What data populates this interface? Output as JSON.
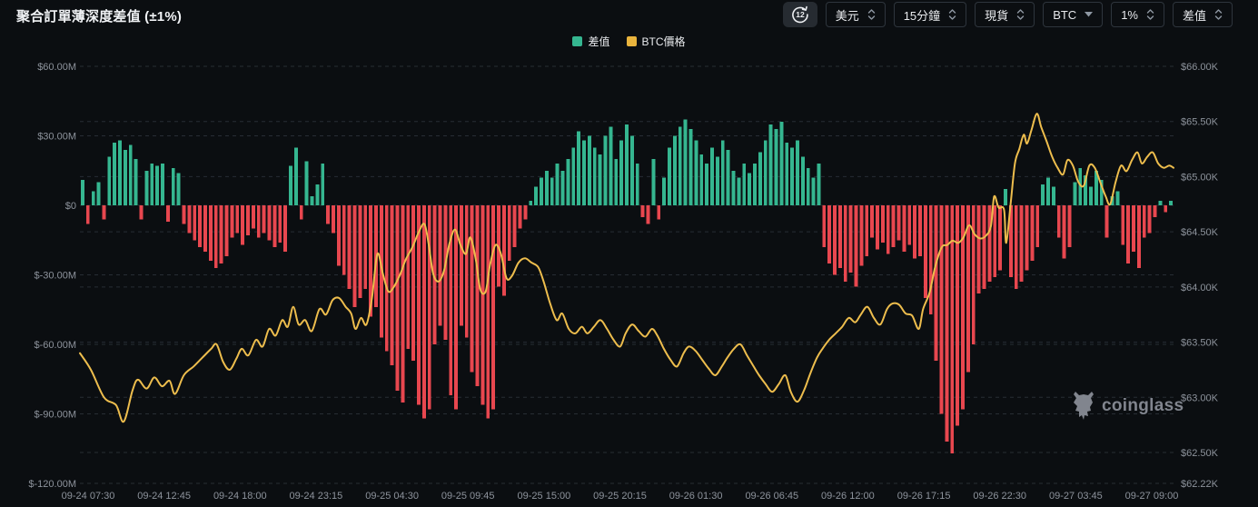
{
  "header": {
    "title": "聚合訂單薄深度差值 (±1%)"
  },
  "toolbar": {
    "refresh_label": "12",
    "buttons": [
      {
        "label": "美元",
        "control": "spinner"
      },
      {
        "label": "15分鐘",
        "control": "spinner"
      },
      {
        "label": "現貨",
        "control": "spinner"
      },
      {
        "label": "BTC",
        "control": "dropdown"
      },
      {
        "label": "1%",
        "control": "spinner"
      },
      {
        "label": "差值",
        "control": "spinner"
      }
    ]
  },
  "legend": {
    "items": [
      {
        "label": "差值",
        "color": "#35B690"
      },
      {
        "label": "BTC價格",
        "color": "#E9B43D"
      }
    ]
  },
  "watermark": {
    "text": "coinglass"
  },
  "chart_data": {
    "type": "bar+line",
    "title": "聚合訂單薄深度差值 (±1%)",
    "bar_series": {
      "name": "差值",
      "unit": "USD millions",
      "positive_color": "#35B690",
      "negative_color": "#E8474F",
      "values": [
        11,
        -8,
        6,
        10,
        -6,
        21,
        27,
        28,
        24,
        26,
        20,
        -6,
        15,
        18,
        17,
        18,
        -7,
        16,
        14,
        -8,
        -12,
        -15,
        -18,
        -20,
        -24,
        -27,
        -25,
        -22,
        -14,
        -12,
        -17,
        -13,
        -10,
        -14,
        -12,
        -15,
        -18,
        -16,
        -20,
        17,
        25,
        -6,
        19,
        4,
        9,
        18,
        -8,
        -12,
        -26,
        -30,
        -36,
        -44,
        -40,
        -36,
        -48,
        -44,
        -57,
        -63,
        -69,
        -80,
        -85,
        -62,
        -67,
        -86,
        -92,
        -88,
        -60,
        -52,
        -58,
        -82,
        -88,
        -52,
        -57,
        -72,
        -78,
        -86,
        -92,
        -88,
        -35,
        -39,
        -24,
        -18,
        -10,
        -6,
        2,
        8,
        12,
        15,
        12,
        18,
        15,
        20,
        25,
        32,
        28,
        30,
        25,
        22,
        30,
        34,
        20,
        28,
        35,
        30,
        18,
        -5,
        -8,
        20,
        -6,
        12,
        25,
        30,
        34,
        37,
        33,
        28,
        22,
        18,
        25,
        21,
        28,
        24,
        15,
        12,
        18,
        14,
        18,
        23,
        28,
        35,
        33,
        36,
        27,
        25,
        28,
        21,
        16,
        12,
        18,
        -18,
        -25,
        -30,
        -27,
        -33,
        -29,
        -35,
        -26,
        -22,
        -14,
        -19,
        -16,
        -21,
        -18,
        -15,
        -20,
        -17,
        -23,
        -22,
        -40,
        -47,
        -67,
        -90,
        -102,
        -107,
        -95,
        -88,
        -72,
        -60,
        -38,
        -36,
        -33,
        -31,
        -28,
        7,
        -31,
        -36,
        -33,
        -28,
        -24,
        -18,
        9,
        12,
        8,
        -14,
        -23,
        -18,
        10,
        16,
        13,
        8,
        15,
        11,
        -14,
        4,
        6,
        -17,
        -25,
        -20,
        -27,
        -14,
        -12,
        -5,
        2,
        -3,
        2
      ]
    },
    "line_series": {
      "name": "BTC價格",
      "unit": "USD thousands",
      "color": "#EDBD4D",
      "points": [
        [
          0.0,
          63.4
        ],
        [
          0.01,
          63.25
        ],
        [
          0.022,
          63.0
        ],
        [
          0.033,
          62.93
        ],
        [
          0.04,
          62.78
        ],
        [
          0.048,
          63.06
        ],
        [
          0.053,
          63.16
        ],
        [
          0.061,
          63.08
        ],
        [
          0.068,
          63.18
        ],
        [
          0.075,
          63.1
        ],
        [
          0.082,
          63.15
        ],
        [
          0.087,
          63.03
        ],
        [
          0.095,
          63.2
        ],
        [
          0.104,
          63.28
        ],
        [
          0.112,
          63.36
        ],
        [
          0.12,
          63.44
        ],
        [
          0.125,
          63.48
        ],
        [
          0.131,
          63.32
        ],
        [
          0.137,
          63.25
        ],
        [
          0.143,
          63.35
        ],
        [
          0.148,
          63.44
        ],
        [
          0.154,
          63.38
        ],
        [
          0.161,
          63.52
        ],
        [
          0.167,
          63.46
        ],
        [
          0.173,
          63.62
        ],
        [
          0.179,
          63.56
        ],
        [
          0.185,
          63.7
        ],
        [
          0.19,
          63.64
        ],
        [
          0.195,
          63.82
        ],
        [
          0.2,
          63.66
        ],
        [
          0.206,
          63.7
        ],
        [
          0.212,
          63.6
        ],
        [
          0.219,
          63.8
        ],
        [
          0.225,
          63.75
        ],
        [
          0.231,
          63.88
        ],
        [
          0.237,
          63.9
        ],
        [
          0.243,
          63.82
        ],
        [
          0.248,
          63.76
        ],
        [
          0.252,
          63.62
        ],
        [
          0.257,
          63.72
        ],
        [
          0.262,
          63.66
        ],
        [
          0.267,
          63.9
        ],
        [
          0.272,
          64.3
        ],
        [
          0.277,
          64.12
        ],
        [
          0.282,
          63.96
        ],
        [
          0.287,
          64.0
        ],
        [
          0.293,
          64.12
        ],
        [
          0.298,
          64.25
        ],
        [
          0.304,
          64.36
        ],
        [
          0.31,
          64.5
        ],
        [
          0.315,
          64.57
        ],
        [
          0.319,
          64.38
        ],
        [
          0.323,
          64.12
        ],
        [
          0.328,
          64.05
        ],
        [
          0.333,
          64.15
        ],
        [
          0.338,
          64.4
        ],
        [
          0.343,
          64.52
        ],
        [
          0.348,
          64.38
        ],
        [
          0.353,
          64.3
        ],
        [
          0.357,
          64.45
        ],
        [
          0.362,
          64.25
        ],
        [
          0.366,
          63.98
        ],
        [
          0.371,
          63.96
        ],
        [
          0.375,
          64.2
        ],
        [
          0.38,
          64.38
        ],
        [
          0.385,
          64.3
        ],
        [
          0.39,
          64.08
        ],
        [
          0.395,
          64.1
        ],
        [
          0.401,
          64.22
        ],
        [
          0.407,
          64.26
        ],
        [
          0.413,
          64.22
        ],
        [
          0.419,
          64.18
        ],
        [
          0.424,
          64.05
        ],
        [
          0.43,
          63.85
        ],
        [
          0.436,
          63.7
        ],
        [
          0.441,
          63.76
        ],
        [
          0.447,
          63.62
        ],
        [
          0.453,
          63.58
        ],
        [
          0.459,
          63.64
        ],
        [
          0.464,
          63.58
        ],
        [
          0.47,
          63.64
        ],
        [
          0.476,
          63.7
        ],
        [
          0.482,
          63.62
        ],
        [
          0.488,
          63.52
        ],
        [
          0.494,
          63.46
        ],
        [
          0.499,
          63.58
        ],
        [
          0.505,
          63.66
        ],
        [
          0.511,
          63.6
        ],
        [
          0.517,
          63.55
        ],
        [
          0.523,
          63.62
        ],
        [
          0.528,
          63.56
        ],
        [
          0.534,
          63.44
        ],
        [
          0.54,
          63.34
        ],
        [
          0.546,
          63.28
        ],
        [
          0.552,
          63.4
        ],
        [
          0.557,
          63.46
        ],
        [
          0.563,
          63.42
        ],
        [
          0.569,
          63.34
        ],
        [
          0.575,
          63.26
        ],
        [
          0.581,
          63.2
        ],
        [
          0.587,
          63.28
        ],
        [
          0.592,
          63.36
        ],
        [
          0.598,
          63.44
        ],
        [
          0.604,
          63.48
        ],
        [
          0.61,
          63.38
        ],
        [
          0.616,
          63.28
        ],
        [
          0.621,
          63.2
        ],
        [
          0.627,
          63.12
        ],
        [
          0.633,
          63.05
        ],
        [
          0.639,
          63.12
        ],
        [
          0.645,
          63.2
        ],
        [
          0.65,
          63.05
        ],
        [
          0.656,
          62.96
        ],
        [
          0.662,
          63.06
        ],
        [
          0.668,
          63.22
        ],
        [
          0.674,
          63.36
        ],
        [
          0.679,
          63.44
        ],
        [
          0.685,
          63.52
        ],
        [
          0.691,
          63.58
        ],
        [
          0.697,
          63.64
        ],
        [
          0.703,
          63.72
        ],
        [
          0.709,
          63.68
        ],
        [
          0.714,
          63.75
        ],
        [
          0.72,
          63.82
        ],
        [
          0.726,
          63.72
        ],
        [
          0.732,
          63.66
        ],
        [
          0.738,
          63.8
        ],
        [
          0.743,
          63.85
        ],
        [
          0.749,
          63.84
        ],
        [
          0.755,
          63.76
        ],
        [
          0.761,
          63.74
        ],
        [
          0.767,
          63.62
        ],
        [
          0.771,
          63.8
        ],
        [
          0.777,
          63.95
        ],
        [
          0.782,
          64.18
        ],
        [
          0.788,
          64.36
        ],
        [
          0.793,
          64.38
        ],
        [
          0.798,
          64.42
        ],
        [
          0.803,
          64.4
        ],
        [
          0.808,
          64.45
        ],
        [
          0.813,
          64.56
        ],
        [
          0.818,
          64.48
        ],
        [
          0.823,
          64.44
        ],
        [
          0.828,
          64.46
        ],
        [
          0.833,
          64.55
        ],
        [
          0.836,
          64.82
        ],
        [
          0.84,
          64.72
        ],
        [
          0.845,
          64.7
        ],
        [
          0.847,
          64.4
        ],
        [
          0.851,
          64.75
        ],
        [
          0.855,
          65.12
        ],
        [
          0.859,
          65.25
        ],
        [
          0.863,
          65.38
        ],
        [
          0.866,
          65.3
        ],
        [
          0.87,
          65.42
        ],
        [
          0.875,
          65.57
        ],
        [
          0.879,
          65.45
        ],
        [
          0.884,
          65.32
        ],
        [
          0.889,
          65.18
        ],
        [
          0.894,
          65.08
        ],
        [
          0.899,
          65.02
        ],
        [
          0.903,
          65.15
        ],
        [
          0.908,
          65.1
        ],
        [
          0.913,
          64.95
        ],
        [
          0.918,
          64.92
        ],
        [
          0.923,
          65.1
        ],
        [
          0.928,
          65.08
        ],
        [
          0.933,
          64.95
        ],
        [
          0.938,
          64.82
        ],
        [
          0.942,
          64.75
        ],
        [
          0.947,
          64.95
        ],
        [
          0.952,
          65.1
        ],
        [
          0.957,
          65.05
        ],
        [
          0.962,
          65.15
        ],
        [
          0.967,
          65.22
        ],
        [
          0.971,
          65.12
        ],
        [
          0.976,
          65.18
        ],
        [
          0.981,
          65.22
        ],
        [
          0.986,
          65.12
        ],
        [
          0.991,
          65.08
        ],
        [
          0.996,
          65.1
        ],
        [
          1.0,
          65.08
        ]
      ]
    },
    "x_axis": {
      "interval": "15分鐘",
      "tick_labels": [
        "09-24 07:30",
        "09-24 12:45",
        "09-24 18:00",
        "09-24 23:15",
        "09-25 04:30",
        "09-25 09:45",
        "09-25 15:00",
        "09-25 20:15",
        "09-26 01:30",
        "09-26 06:45",
        "09-26 12:00",
        "09-26 17:15",
        "09-26 22:30",
        "09-27 03:45",
        "09-27 09:00"
      ]
    },
    "y_axis_left": {
      "unit": "USD millions",
      "values": [
        60,
        30,
        0,
        -30,
        -60,
        -90,
        -120
      ],
      "labels": [
        "$60.00M",
        "$30.00M",
        "$0",
        "$-30.00M",
        "$-60.00M",
        "$-90.00M",
        "$-120.00M"
      ],
      "range": [
        -120,
        60
      ]
    },
    "y_axis_right": {
      "unit": "USD thousands",
      "values": [
        66.0,
        65.5,
        65.0,
        64.5,
        64.0,
        63.5,
        63.0,
        62.5,
        62.22
      ],
      "labels": [
        "$66.00K",
        "$65.50K",
        "$65.00K",
        "$64.50K",
        "$64.00K",
        "$63.50K",
        "$63.00K",
        "$62.50K",
        "$62.22K"
      ],
      "range": [
        62.22,
        66.0
      ]
    },
    "grid": {
      "on": true,
      "color": "#2A3037",
      "style": "dashed"
    },
    "legend_position": "top-center",
    "background": "#0B0E11"
  }
}
